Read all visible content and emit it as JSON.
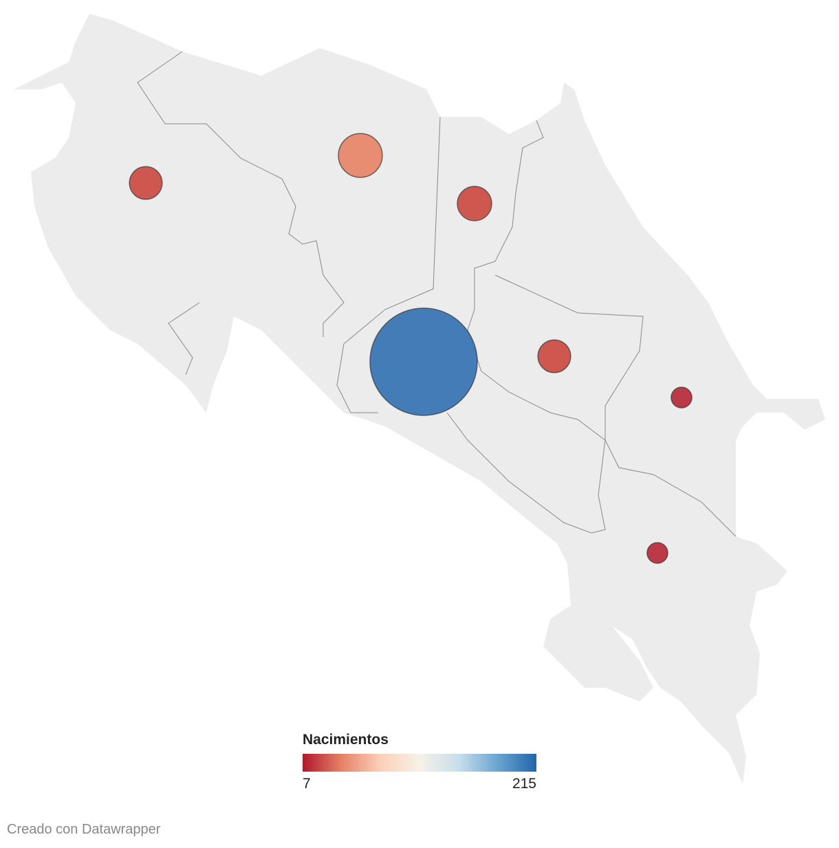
{
  "map": {
    "bubbles": [
      {
        "value": 20,
        "color": "#cc5048"
      },
      {
        "value": 36,
        "color": "#e8876c"
      },
      {
        "value": 22,
        "color": "#cc5048"
      },
      {
        "value": 215,
        "color": "#3b76b5"
      },
      {
        "value": 20,
        "color": "#cc5048"
      },
      {
        "value": 8,
        "color": "#bb2f3e"
      },
      {
        "value": 8,
        "color": "#bb2f3e"
      }
    ],
    "legend": {
      "title": "Nacimientos",
      "min": 7,
      "max": 215,
      "colors": [
        "#b2182b",
        "#e58267",
        "#fbd0b9",
        "#f7f1e7",
        "#c7dfec",
        "#6ba4cf",
        "#2166ac"
      ]
    },
    "footer": "Creado con Datawrapper"
  }
}
